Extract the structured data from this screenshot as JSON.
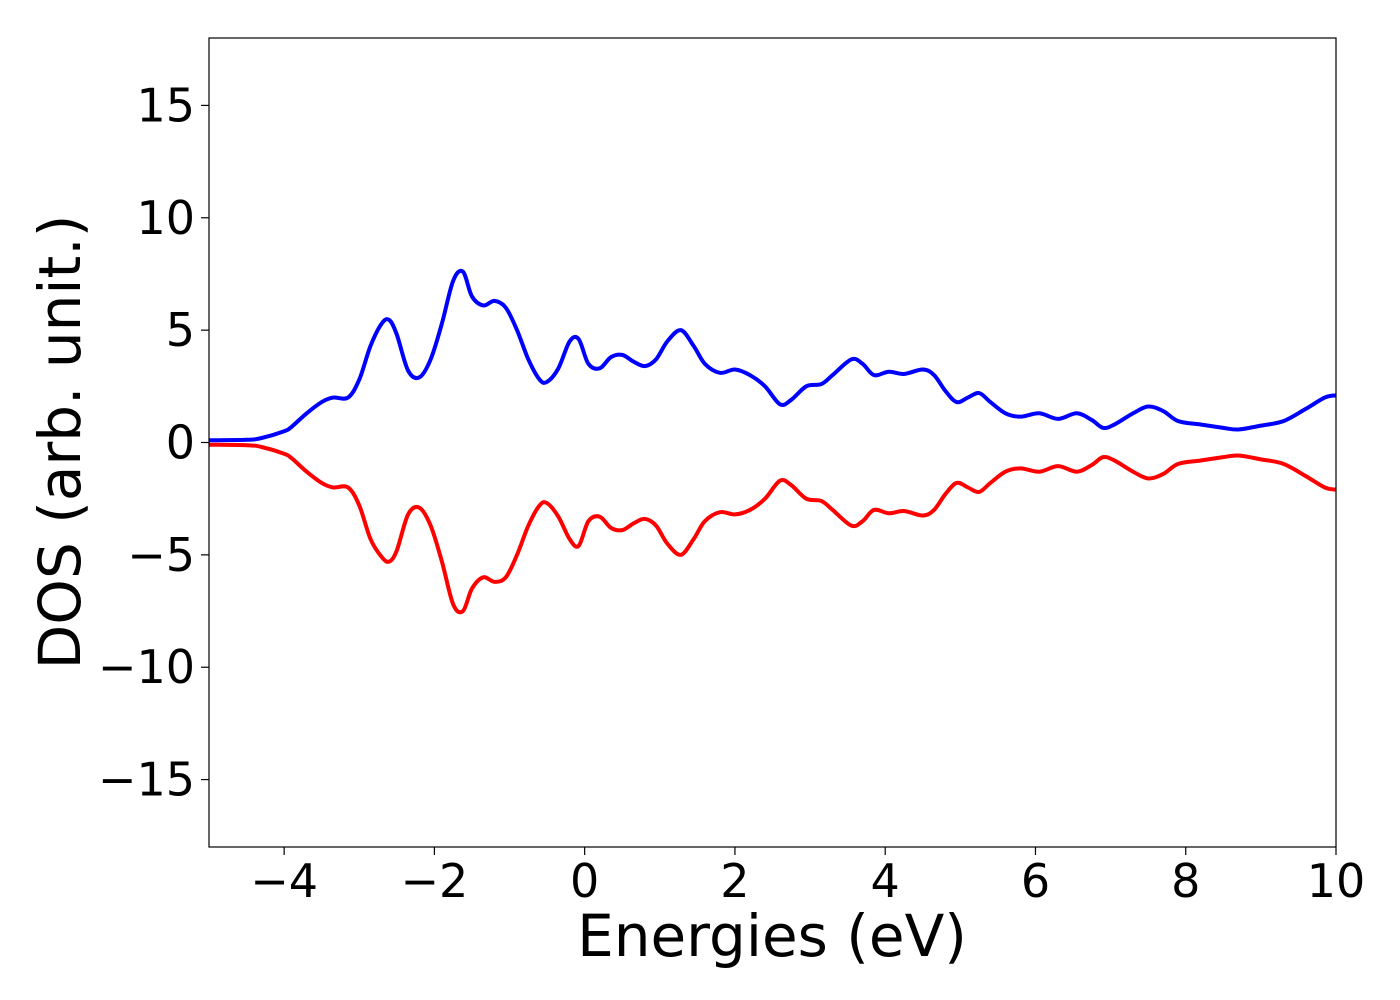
{
  "chart_data": {
    "type": "line",
    "title": "",
    "xlabel": "Energies (eV)",
    "ylabel": "DOS (arb. unit.)",
    "xlim": [
      -5,
      10
    ],
    "ylim": [
      -18,
      18
    ],
    "grid": false,
    "legend": "none",
    "x_ticks": [
      -4,
      -2,
      0,
      2,
      4,
      6,
      8,
      10
    ],
    "x_tick_labels": [
      "−4",
      "−2",
      "0",
      "2",
      "4",
      "6",
      "8",
      "10"
    ],
    "y_ticks": [
      15,
      10,
      5,
      0,
      -5,
      -10,
      -15
    ],
    "y_tick_labels": [
      "15",
      "10",
      "5",
      "0",
      "−5",
      "−10",
      "−15"
    ],
    "series": [
      {
        "color": "#0000ff",
        "x": [
          -5.0,
          -4.5,
          -4.3,
          -4.0,
          -3.9,
          -3.7,
          -3.5,
          -3.35,
          -3.15,
          -3.0,
          -2.85,
          -2.7,
          -2.6,
          -2.5,
          -2.35,
          -2.2,
          -2.05,
          -1.9,
          -1.75,
          -1.62,
          -1.5,
          -1.35,
          -1.2,
          -1.05,
          -0.9,
          -0.75,
          -0.6,
          -0.5,
          -0.35,
          -0.2,
          -0.08,
          0.05,
          0.2,
          0.35,
          0.5,
          0.65,
          0.8,
          0.95,
          1.1,
          1.28,
          1.45,
          1.6,
          1.8,
          2.0,
          2.2,
          2.4,
          2.6,
          2.75,
          2.95,
          3.15,
          3.3,
          3.55,
          3.7,
          3.85,
          4.05,
          4.25,
          4.5,
          4.65,
          4.8,
          4.95,
          5.1,
          5.25,
          5.4,
          5.6,
          5.8,
          6.05,
          6.3,
          6.55,
          6.75,
          6.9,
          7.05,
          7.3,
          7.5,
          7.7,
          7.9,
          8.2,
          8.5,
          8.7,
          9.0,
          9.3,
          9.6,
          9.85,
          10.0
        ],
        "y": [
          0.1,
          0.12,
          0.2,
          0.5,
          0.7,
          1.3,
          1.8,
          2.0,
          2.0,
          2.8,
          4.3,
          5.3,
          5.45,
          4.8,
          3.2,
          2.9,
          3.7,
          5.3,
          7.2,
          7.6,
          6.5,
          6.1,
          6.3,
          6.0,
          5.0,
          3.7,
          2.8,
          2.7,
          3.3,
          4.5,
          4.6,
          3.5,
          3.3,
          3.8,
          3.9,
          3.6,
          3.4,
          3.7,
          4.5,
          5.0,
          4.3,
          3.5,
          3.1,
          3.25,
          3.0,
          2.5,
          1.7,
          1.9,
          2.5,
          2.6,
          3.0,
          3.7,
          3.5,
          3.0,
          3.15,
          3.05,
          3.25,
          3.0,
          2.3,
          1.8,
          2.0,
          2.2,
          1.8,
          1.3,
          1.15,
          1.3,
          1.05,
          1.3,
          1.0,
          0.65,
          0.8,
          1.3,
          1.6,
          1.4,
          0.95,
          0.8,
          0.65,
          0.58,
          0.75,
          0.95,
          1.5,
          2.0,
          2.1
        ]
      },
      {
        "color": "#ff0000",
        "x": [
          -5.0,
          -4.5,
          -4.3,
          -4.0,
          -3.9,
          -3.7,
          -3.5,
          -3.35,
          -3.15,
          -3.0,
          -2.85,
          -2.7,
          -2.6,
          -2.5,
          -2.35,
          -2.2,
          -2.05,
          -1.9,
          -1.75,
          -1.62,
          -1.5,
          -1.35,
          -1.2,
          -1.05,
          -0.9,
          -0.75,
          -0.6,
          -0.5,
          -0.35,
          -0.2,
          -0.08,
          0.05,
          0.2,
          0.35,
          0.5,
          0.65,
          0.8,
          0.95,
          1.1,
          1.28,
          1.45,
          1.6,
          1.8,
          2.0,
          2.2,
          2.4,
          2.6,
          2.75,
          2.95,
          3.15,
          3.3,
          3.55,
          3.7,
          3.85,
          4.05,
          4.25,
          4.5,
          4.65,
          4.8,
          4.95,
          5.1,
          5.25,
          5.4,
          5.6,
          5.8,
          6.05,
          6.3,
          6.55,
          6.75,
          6.9,
          7.05,
          7.3,
          7.5,
          7.7,
          7.9,
          8.2,
          8.5,
          8.7,
          9.0,
          9.3,
          9.6,
          9.85,
          10.0
        ],
        "y": [
          -0.1,
          -0.12,
          -0.2,
          -0.5,
          -0.7,
          -1.3,
          -1.8,
          -2.0,
          -2.0,
          -2.8,
          -4.3,
          -5.1,
          -5.3,
          -4.8,
          -3.2,
          -2.9,
          -3.7,
          -5.3,
          -7.2,
          -7.5,
          -6.5,
          -6.0,
          -6.2,
          -6.0,
          -5.0,
          -3.7,
          -2.8,
          -2.7,
          -3.3,
          -4.3,
          -4.6,
          -3.5,
          -3.3,
          -3.8,
          -3.9,
          -3.6,
          -3.4,
          -3.7,
          -4.5,
          -5.0,
          -4.3,
          -3.5,
          -3.1,
          -3.2,
          -3.0,
          -2.5,
          -1.7,
          -1.9,
          -2.5,
          -2.6,
          -3.0,
          -3.7,
          -3.5,
          -3.0,
          -3.15,
          -3.05,
          -3.25,
          -3.0,
          -2.3,
          -1.8,
          -2.0,
          -2.2,
          -1.8,
          -1.3,
          -1.15,
          -1.3,
          -1.05,
          -1.3,
          -1.0,
          -0.65,
          -0.8,
          -1.3,
          -1.6,
          -1.4,
          -0.95,
          -0.8,
          -0.65,
          -0.58,
          -0.75,
          -0.95,
          -1.5,
          -2.0,
          -2.1
        ]
      }
    ]
  }
}
